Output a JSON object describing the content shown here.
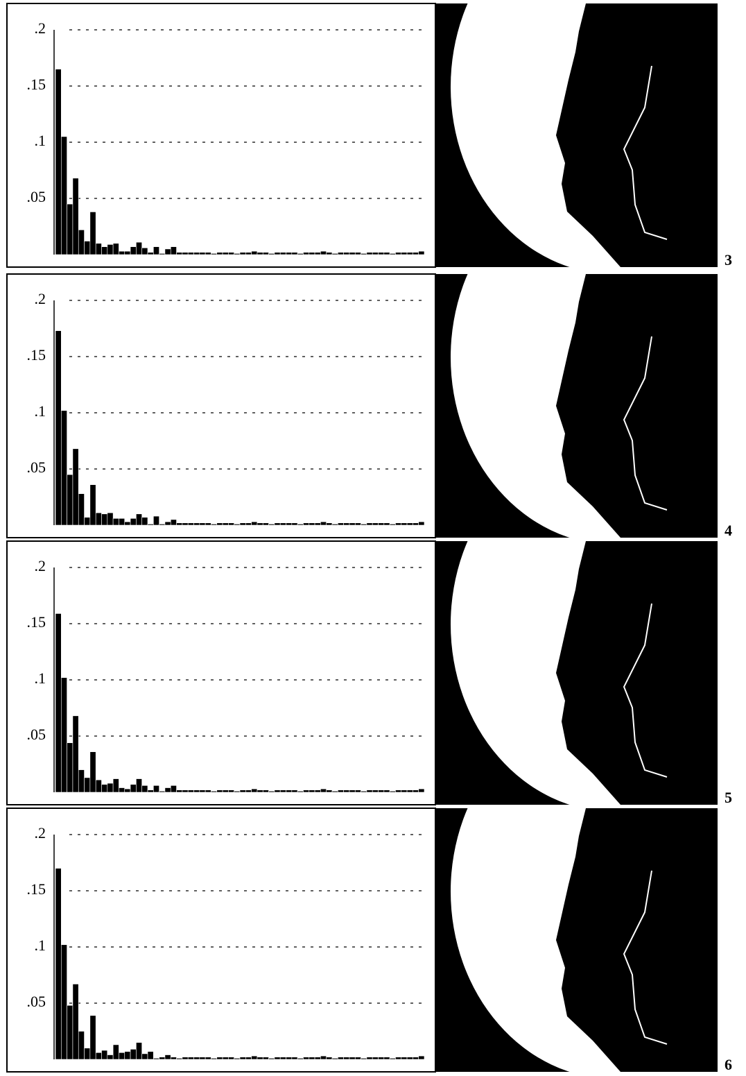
{
  "chart_data": [
    {
      "type": "bar",
      "label": "3",
      "color": "#000000",
      "grid": true,
      "ylim": [
        0,
        0.2
      ],
      "yticks": [
        {
          "value": 0.05,
          "label": ".05"
        },
        {
          "value": 0.1,
          "label": ".1"
        },
        {
          "value": 0.15,
          "label": ".15"
        },
        {
          "value": 0.2,
          "label": ".2"
        }
      ],
      "values": [
        0.165,
        0.105,
        0.045,
        0.068,
        0.022,
        0.012,
        0.038,
        0.01,
        0.007,
        0.009,
        0.01,
        0.003,
        0.003,
        0.007,
        0.011,
        0.006,
        0.002,
        0.007,
        0.001,
        0.005,
        0.007,
        0.002,
        0.002,
        0.002,
        0.002,
        0.002,
        0.002,
        0.001,
        0.002,
        0.002,
        0.002,
        0.001,
        0.002,
        0.002,
        0.003,
        0.002,
        0.002,
        0.001,
        0.002,
        0.002,
        0.002,
        0.002,
        0.001,
        0.002,
        0.002,
        0.002,
        0.003,
        0.002,
        0.001,
        0.002,
        0.002,
        0.002,
        0.002,
        0.001,
        0.002,
        0.002,
        0.002,
        0.002,
        0.001,
        0.002,
        0.002,
        0.002,
        0.002,
        0.003
      ]
    },
    {
      "type": "bar",
      "label": "4",
      "color": "#000000",
      "grid": true,
      "ylim": [
        0,
        0.2
      ],
      "yticks": [
        {
          "value": 0.05,
          "label": ".05"
        },
        {
          "value": 0.1,
          "label": ".1"
        },
        {
          "value": 0.15,
          "label": ".15"
        },
        {
          "value": 0.2,
          "label": ".2"
        }
      ],
      "values": [
        0.173,
        0.102,
        0.045,
        0.068,
        0.028,
        0.007,
        0.036,
        0.011,
        0.01,
        0.011,
        0.006,
        0.006,
        0.003,
        0.006,
        0.01,
        0.007,
        0.001,
        0.008,
        0.001,
        0.003,
        0.005,
        0.002,
        0.002,
        0.002,
        0.002,
        0.002,
        0.002,
        0.001,
        0.002,
        0.002,
        0.002,
        0.001,
        0.002,
        0.002,
        0.003,
        0.002,
        0.002,
        0.001,
        0.002,
        0.002,
        0.002,
        0.002,
        0.001,
        0.002,
        0.002,
        0.002,
        0.003,
        0.002,
        0.001,
        0.002,
        0.002,
        0.002,
        0.002,
        0.001,
        0.002,
        0.002,
        0.002,
        0.002,
        0.001,
        0.002,
        0.002,
        0.002,
        0.002,
        0.003
      ]
    },
    {
      "type": "bar",
      "label": "5",
      "color": "#000000",
      "grid": true,
      "ylim": [
        0,
        0.2
      ],
      "yticks": [
        {
          "value": 0.05,
          "label": ".05"
        },
        {
          "value": 0.1,
          "label": ".1"
        },
        {
          "value": 0.15,
          "label": ".15"
        },
        {
          "value": 0.2,
          "label": ".2"
        }
      ],
      "values": [
        0.159,
        0.102,
        0.044,
        0.068,
        0.02,
        0.013,
        0.036,
        0.011,
        0.007,
        0.008,
        0.012,
        0.004,
        0.003,
        0.007,
        0.012,
        0.006,
        0.002,
        0.006,
        0.001,
        0.004,
        0.006,
        0.002,
        0.002,
        0.002,
        0.002,
        0.002,
        0.002,
        0.001,
        0.002,
        0.002,
        0.002,
        0.001,
        0.002,
        0.002,
        0.003,
        0.002,
        0.002,
        0.001,
        0.002,
        0.002,
        0.002,
        0.002,
        0.001,
        0.002,
        0.002,
        0.002,
        0.003,
        0.002,
        0.001,
        0.002,
        0.002,
        0.002,
        0.002,
        0.001,
        0.002,
        0.002,
        0.002,
        0.002,
        0.001,
        0.002,
        0.002,
        0.002,
        0.002,
        0.003
      ]
    },
    {
      "type": "bar",
      "label": "6",
      "color": "#000000",
      "grid": true,
      "ylim": [
        0,
        0.2
      ],
      "yticks": [
        {
          "value": 0.05,
          "label": ".05"
        },
        {
          "value": 0.1,
          "label": ".1"
        },
        {
          "value": 0.15,
          "label": ".15"
        },
        {
          "value": 0.2,
          "label": ".2"
        }
      ],
      "values": [
        0.17,
        0.102,
        0.048,
        0.067,
        0.025,
        0.01,
        0.039,
        0.006,
        0.008,
        0.004,
        0.013,
        0.006,
        0.007,
        0.009,
        0.015,
        0.005,
        0.007,
        0.001,
        0.002,
        0.004,
        0.002,
        0.001,
        0.002,
        0.002,
        0.002,
        0.002,
        0.002,
        0.001,
        0.002,
        0.002,
        0.002,
        0.001,
        0.002,
        0.002,
        0.003,
        0.002,
        0.002,
        0.001,
        0.002,
        0.002,
        0.002,
        0.002,
        0.001,
        0.002,
        0.002,
        0.002,
        0.003,
        0.002,
        0.001,
        0.002,
        0.002,
        0.002,
        0.002,
        0.001,
        0.002,
        0.002,
        0.002,
        0.002,
        0.001,
        0.002,
        0.002,
        0.002,
        0.002,
        0.003
      ]
    }
  ]
}
